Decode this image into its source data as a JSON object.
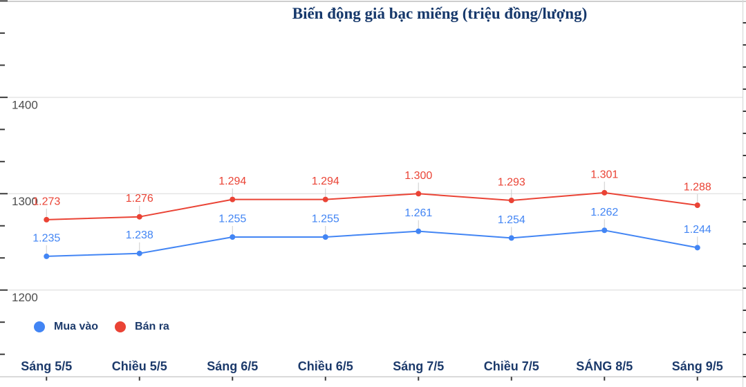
{
  "chart": {
    "title": "Biến động giá bạc miếng (triệu đồng/lượng)"
  },
  "colors": {
    "navy_text": "#1c3a6b",
    "title_navy": "#16386b",
    "axis_label_gray": "#4d4d4d",
    "gridline_gray": "#d9d9d9",
    "axis_line_gray": "#bdbdbd",
    "tick_dark": "#3a3a3a",
    "leader_gray": "#cccccc",
    "series_blue": "#4285f4",
    "series_red": "#ea4335",
    "background": "#ffffff"
  },
  "chart_data": {
    "type": "line",
    "title": "Biến động giá bạc miếng (triệu đồng/lượng)",
    "xlabel": "",
    "ylabel": "",
    "categories": [
      "Sáng 5/5",
      "Chiều 5/5",
      "Sáng 6/5",
      "Chiều 6/5",
      "Sáng 7/5",
      "Chiều 7/5",
      "SÁNG 8/5",
      "Sáng 9/5"
    ],
    "series": [
      {
        "name": "Mua vào",
        "color": "#4285f4",
        "values": [
          1235,
          1238,
          1255,
          1255,
          1261,
          1254,
          1262,
          1244
        ],
        "labels": [
          "1.235",
          "1.238",
          "1.255",
          "1.255",
          "1.261",
          "1.254",
          "1.262",
          "1.244"
        ]
      },
      {
        "name": "Bán ra",
        "color": "#ea4335",
        "values": [
          1273,
          1276,
          1294,
          1294,
          1300,
          1293,
          1301,
          1288
        ],
        "labels": [
          "1.273",
          "1.276",
          "1.294",
          "1.294",
          "1.300",
          "1.293",
          "1.301",
          "1.288"
        ]
      }
    ],
    "y_axis": {
      "tick_labels": [
        "1400",
        "1300",
        "1200"
      ],
      "tick_values": [
        1400,
        1300,
        1200
      ]
    },
    "ylim": [
      1110,
      1501
    ],
    "grid": true,
    "legend_position": "bottom-left",
    "data_labels_shown": true
  }
}
